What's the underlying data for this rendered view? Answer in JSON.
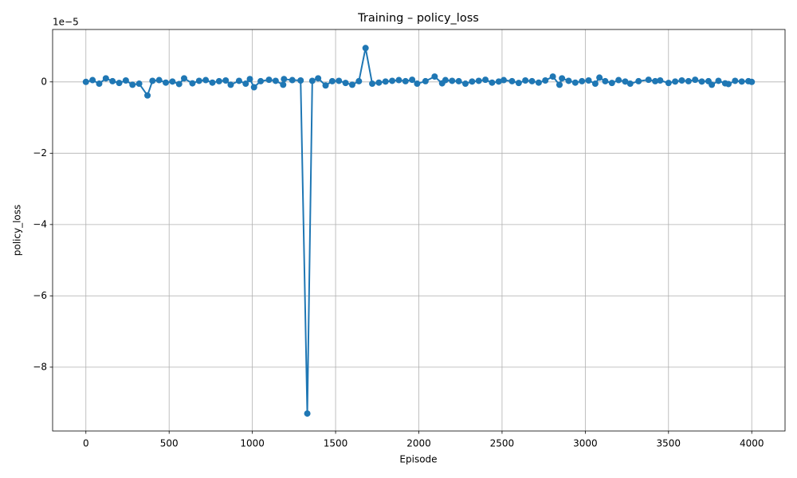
{
  "chart_data": {
    "type": "line",
    "title": "Training – policy_loss",
    "xlabel": "Episode",
    "ylabel": "policy_loss",
    "offset_text": "1e−5",
    "x": [
      0,
      40,
      80,
      120,
      160,
      200,
      240,
      280,
      320,
      370,
      400,
      440,
      480,
      520,
      560,
      590,
      640,
      680,
      720,
      760,
      800,
      840,
      870,
      920,
      960,
      985,
      1010,
      1050,
      1100,
      1140,
      1185,
      1190,
      1240,
      1290,
      1330,
      1360,
      1395,
      1440,
      1480,
      1520,
      1560,
      1600,
      1640,
      1680,
      1720,
      1760,
      1800,
      1840,
      1880,
      1920,
      1960,
      1990,
      2040,
      2095,
      2140,
      2160,
      2200,
      2240,
      2280,
      2320,
      2360,
      2400,
      2440,
      2480,
      2510,
      2560,
      2600,
      2640,
      2680,
      2720,
      2760,
      2805,
      2845,
      2860,
      2900,
      2940,
      2980,
      3020,
      3060,
      3085,
      3120,
      3160,
      3200,
      3240,
      3270,
      3320,
      3380,
      3420,
      3450,
      3500,
      3540,
      3580,
      3620,
      3660,
      3700,
      3740,
      3760,
      3800,
      3840,
      3860,
      3900,
      3940,
      3980,
      4000
    ],
    "series": [
      {
        "color": "#1f77b4",
        "values": [
          0,
          0.05,
          -0.05,
          0.1,
          0.02,
          -0.03,
          0.04,
          -0.08,
          -0.05,
          -0.38,
          0.03,
          0.05,
          -0.02,
          0.01,
          -0.06,
          0.1,
          -0.04,
          0.03,
          0.05,
          -0.02,
          0.02,
          0.04,
          -0.08,
          0.03,
          -0.05,
          0.08,
          -0.15,
          0.02,
          0.06,
          0.03,
          -0.08,
          0.08,
          0.05,
          0.04,
          -9.3,
          0.03,
          0.1,
          -0.1,
          0.02,
          0.03,
          -0.03,
          -0.08,
          0.02,
          0.95,
          -0.05,
          -0.02,
          0.01,
          0.03,
          0.05,
          0.02,
          0.06,
          -0.05,
          0.02,
          0.15,
          -0.04,
          0.05,
          0.03,
          0.02,
          -0.05,
          0.01,
          0.03,
          0.06,
          -0.02,
          0.01,
          0.05,
          0.02,
          -0.03,
          0.04,
          0.02,
          -0.02,
          0.04,
          0.15,
          -0.08,
          0.1,
          0.03,
          -0.02,
          0.02,
          0.04,
          -0.05,
          0.12,
          0.02,
          -0.03,
          0.05,
          0.01,
          -0.05,
          0.02,
          0.06,
          0.02,
          0.04,
          -0.03,
          0.01,
          0.04,
          0.02,
          0.06,
          0.01,
          0.02,
          -0.08,
          0.03,
          -0.04,
          -0.06,
          0.03,
          0.01,
          0.02,
          0
        ]
      }
    ],
    "xlim": [
      -200,
      4200
    ],
    "ylim": [
      -9.79,
      1.47
    ],
    "xticks": [
      0,
      500,
      1000,
      1500,
      2000,
      2500,
      3000,
      3500,
      4000
    ],
    "yticks": [
      0,
      {
        "value": -2,
        "label": "−2"
      },
      {
        "value": -4,
        "label": "−4"
      },
      {
        "value": -6,
        "label": "−6"
      },
      {
        "value": -8,
        "label": "−8"
      }
    ],
    "grid": true
  }
}
